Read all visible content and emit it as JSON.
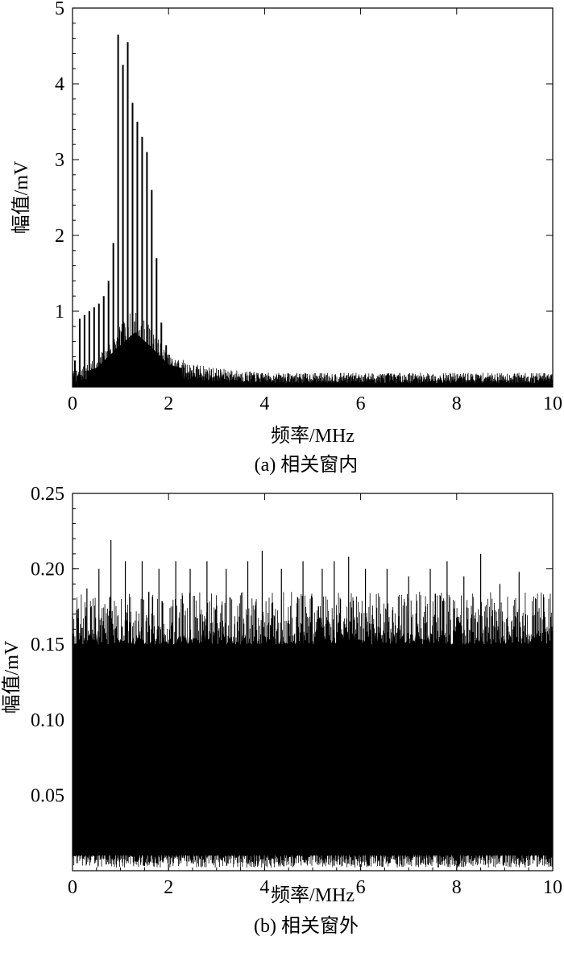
{
  "chart_data": [
    {
      "type": "bar",
      "panel_caption": "(a) 相关窗内",
      "xlabel": "频率/MHz",
      "ylabel": "幅值/mV",
      "xlim": [
        0,
        10
      ],
      "ylim": [
        0,
        5
      ],
      "xticks": [
        "0",
        "2",
        "4",
        "6",
        "8",
        "10"
      ],
      "yticks": [
        "1",
        "2",
        "3",
        "4",
        "5"
      ],
      "peaks": {
        "x": [
          0.05,
          0.15,
          0.25,
          0.35,
          0.45,
          0.55,
          0.65,
          0.75,
          0.85,
          0.95,
          1.05,
          1.15,
          1.25,
          1.35,
          1.45,
          1.55,
          1.65,
          1.75,
          1.85,
          1.95,
          2.05,
          2.15,
          2.25
        ],
        "y": [
          0.35,
          0.9,
          0.95,
          1.0,
          1.05,
          1.1,
          1.2,
          1.4,
          1.9,
          4.65,
          4.25,
          4.55,
          3.75,
          3.5,
          3.3,
          3.1,
          2.6,
          1.7,
          0.85,
          0.55,
          0.3,
          0.25,
          0.2
        ]
      },
      "noise_floor": [
        {
          "x": 0,
          "y": 0.15
        },
        {
          "x": 0.5,
          "y": 0.3
        },
        {
          "x": 1.0,
          "y": 0.65
        },
        {
          "x": 1.3,
          "y": 0.85
        },
        {
          "x": 1.6,
          "y": 0.65
        },
        {
          "x": 2.0,
          "y": 0.35
        },
        {
          "x": 2.5,
          "y": 0.25
        },
        {
          "x": 3.0,
          "y": 0.2
        },
        {
          "x": 4.0,
          "y": 0.15
        },
        {
          "x": 10.0,
          "y": 0.15
        }
      ]
    },
    {
      "type": "bar",
      "panel_caption": "(b) 相关窗外",
      "xlabel": "频率/MHz",
      "ylabel": "幅值/mV",
      "xlim": [
        0,
        10
      ],
      "ylim": [
        0,
        0.25
      ],
      "xticks": [
        "0",
        "2",
        "4",
        "6",
        "8",
        "10"
      ],
      "yticks": [
        "0.05",
        "0.10",
        "0.15",
        "0.20",
        "0.25"
      ],
      "band": {
        "min": 0.01,
        "typical_max": 0.15,
        "max": 0.22
      },
      "spikes": {
        "x": [
          0.3,
          0.55,
          0.8,
          1.1,
          1.45,
          1.8,
          2.15,
          2.45,
          2.8,
          3.2,
          3.65,
          3.95,
          4.35,
          4.8,
          5.2,
          5.45,
          5.75,
          6.1,
          6.55,
          7.0,
          7.45,
          7.8,
          8.15,
          8.5,
          8.9,
          9.3,
          9.65
        ],
        "y": [
          0.187,
          0.2,
          0.219,
          0.205,
          0.205,
          0.2,
          0.205,
          0.2,
          0.205,
          0.2,
          0.205,
          0.212,
          0.2,
          0.205,
          0.2,
          0.205,
          0.208,
          0.2,
          0.2,
          0.195,
          0.2,
          0.205,
          0.195,
          0.21,
          0.19,
          0.198,
          0.18
        ]
      }
    }
  ]
}
